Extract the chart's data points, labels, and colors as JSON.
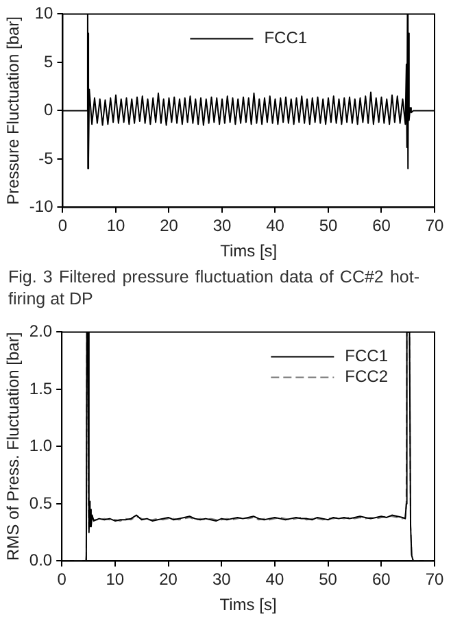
{
  "chart_data": [
    {
      "type": "line",
      "xlabel": "Tims [s]",
      "ylabel": "Pressure Fluctuation [bar]",
      "xlim": [
        0,
        70
      ],
      "xticks": [
        0,
        10,
        20,
        30,
        40,
        50,
        60,
        70
      ],
      "ylim": [
        -10,
        10
      ],
      "yticks": [
        -10,
        -5,
        0,
        5,
        10
      ],
      "legend": "top",
      "annotations": [
        "Fig. 3 Filtered pressure fluctuation data of CC#2 hot-firing at DP"
      ],
      "series": [
        {
          "name": "FCC1",
          "color": "#000000",
          "line_style": "solid",
          "x": [
            0,
            4.6,
            4.7,
            4.75,
            4.8,
            4.9,
            5.0,
            5.5,
            6,
            6.5,
            7,
            7.5,
            8,
            8.5,
            9,
            9.5,
            10,
            10.5,
            11,
            11.5,
            12,
            12.5,
            13,
            13.5,
            14,
            14.5,
            15,
            15.5,
            16,
            16.5,
            17,
            17.5,
            18,
            18.5,
            19,
            19.5,
            20,
            20.5,
            21,
            21.5,
            22,
            22.5,
            23,
            23.5,
            24,
            24.5,
            25,
            25.5,
            26,
            26.5,
            27,
            27.5,
            28,
            28.5,
            29,
            29.5,
            30,
            30.5,
            31,
            31.5,
            32,
            32.5,
            33,
            33.5,
            34,
            34.5,
            35,
            35.5,
            36,
            36.5,
            37,
            37.5,
            38,
            38.5,
            39,
            39.5,
            40,
            40.5,
            41,
            41.5,
            42,
            42.5,
            43,
            43.5,
            44,
            44.5,
            45,
            45.5,
            46,
            46.5,
            47,
            47.5,
            48,
            48.5,
            49,
            49.5,
            50,
            50.5,
            51,
            51.5,
            52,
            52.5,
            53,
            53.5,
            54,
            54.5,
            55,
            55.5,
            56,
            56.5,
            57,
            57.5,
            58,
            58.5,
            59,
            59.5,
            60,
            60.5,
            61,
            61.5,
            62,
            62.5,
            63,
            63.5,
            64,
            64.5,
            64.7,
            64.8,
            64.9,
            65.0,
            65.1,
            65.2,
            65.4,
            65.6,
            66,
            70
          ],
          "values": [
            0,
            0,
            10,
            -6,
            8,
            -5,
            2.2,
            -1.4,
            1.3,
            -1.3,
            1.2,
            -1.5,
            1.1,
            -1.4,
            1.3,
            -1.2,
            1.6,
            -1.3,
            1.2,
            -1.2,
            1.3,
            -1.4,
            1.2,
            -1.3,
            1.4,
            -1.1,
            1.5,
            -1.3,
            1.2,
            -1.4,
            1.3,
            -1.2,
            1.8,
            -1.3,
            1.2,
            -1.5,
            1.3,
            -1.2,
            1.4,
            -1.3,
            1.2,
            -1.4,
            1.3,
            -1.2,
            1.5,
            -1.3,
            1.2,
            -1.4,
            1.3,
            -1.5,
            1.2,
            -1.3,
            1.4,
            -1.2,
            1.3,
            -1.4,
            1.2,
            -1.3,
            1.5,
            -1.2,
            1.3,
            -1.4,
            1.2,
            -1.3,
            1.4,
            -1.2,
            1.3,
            -1.4,
            1.8,
            -1.3,
            1.2,
            -1.4,
            1.3,
            -1.2,
            1.5,
            -1.3,
            1.2,
            -1.4,
            1.3,
            -1.2,
            1.4,
            -1.3,
            1.2,
            -1.4,
            1.3,
            -1.2,
            1.5,
            -1.3,
            1.2,
            -1.4,
            1.3,
            -1.2,
            1.4,
            -1.3,
            1.2,
            -1.4,
            1.3,
            -1.2,
            1.5,
            -1.3,
            1.2,
            -1.4,
            1.3,
            -1.2,
            1.4,
            -1.3,
            1.2,
            -1.4,
            1.3,
            -1.2,
            1.5,
            -1.3,
            1.9,
            -1.4,
            1.3,
            -1.2,
            1.4,
            -1.3,
            1.2,
            -1.4,
            1.6,
            -1.2,
            1.5,
            -1.3,
            1.2,
            -1.4,
            4.8,
            -3.8,
            10,
            -6,
            8,
            -1,
            0.3,
            -0.2,
            0,
            0
          ]
        }
      ]
    },
    {
      "type": "line",
      "xlabel": "Tims [s]",
      "ylabel": "RMS of Press. Fluctuation [bar]",
      "xlim": [
        0,
        70
      ],
      "xticks": [
        0,
        10,
        20,
        30,
        40,
        50,
        60,
        70
      ],
      "ylim": [
        0,
        2
      ],
      "yticks": [
        {
          "value": 0,
          "label": "0.0"
        },
        {
          "value": 0.5,
          "label": "0.5"
        },
        {
          "value": 1,
          "label": "1.0"
        },
        {
          "value": 1.5,
          "label": "1.5"
        },
        {
          "value": 2,
          "label": "2.0"
        }
      ],
      "legend": "top right",
      "series": [
        {
          "name": "FCC1",
          "color": "#000000",
          "line_style": "solid",
          "x": [
            0,
            4.5,
            4.6,
            4.7,
            4.9,
            5.1,
            5.2,
            5.3,
            5.4,
            5.5,
            5.7,
            6,
            7,
            8,
            9,
            10,
            11,
            12,
            13,
            14,
            15,
            16,
            17,
            18,
            19,
            20,
            21,
            22,
            23,
            24,
            25,
            26,
            27,
            28,
            29,
            30,
            31,
            32,
            33,
            34,
            35,
            36,
            37,
            38,
            39,
            40,
            41,
            42,
            43,
            44,
            45,
            46,
            47,
            48,
            49,
            50,
            51,
            52,
            53,
            54,
            55,
            56,
            57,
            58,
            59,
            60,
            61,
            62,
            63,
            64,
            64.5,
            64.7,
            64.8,
            65.3,
            65.5,
            65.7,
            66,
            70
          ],
          "values": [
            0,
            0,
            0.05,
            2,
            2,
            0.25,
            0.52,
            0.3,
            0.45,
            0.3,
            0.4,
            0.35,
            0.37,
            0.36,
            0.37,
            0.35,
            0.36,
            0.36,
            0.37,
            0.4,
            0.36,
            0.37,
            0.35,
            0.36,
            0.37,
            0.38,
            0.36,
            0.37,
            0.38,
            0.39,
            0.37,
            0.36,
            0.37,
            0.36,
            0.35,
            0.37,
            0.36,
            0.37,
            0.38,
            0.37,
            0.38,
            0.39,
            0.37,
            0.36,
            0.37,
            0.38,
            0.37,
            0.36,
            0.37,
            0.38,
            0.37,
            0.37,
            0.36,
            0.38,
            0.37,
            0.36,
            0.38,
            0.37,
            0.38,
            0.37,
            0.38,
            0.39,
            0.38,
            0.37,
            0.38,
            0.39,
            0.38,
            0.4,
            0.39,
            0.38,
            0.37,
            0.5,
            2,
            2,
            0.3,
            0.05,
            0,
            0
          ]
        },
        {
          "name": "FCC2",
          "color": "#777777",
          "line_style": "dashed",
          "x": [
            0,
            4.5,
            4.6,
            4.7,
            4.9,
            5.0,
            5.1,
            5.2,
            5.3,
            5.4,
            5.5,
            5.7,
            6,
            7,
            8,
            9,
            10,
            11,
            12,
            13,
            14,
            15,
            16,
            17,
            18,
            19,
            20,
            21,
            22,
            23,
            24,
            25,
            26,
            27,
            28,
            29,
            30,
            31,
            32,
            33,
            34,
            35,
            36,
            37,
            38,
            39,
            40,
            41,
            42,
            43,
            44,
            45,
            46,
            47,
            48,
            49,
            50,
            51,
            52,
            53,
            54,
            55,
            56,
            57,
            58,
            59,
            60,
            61,
            62,
            63,
            64,
            64.5,
            64.7,
            64.8,
            65.3,
            65.5,
            65.7,
            66,
            70
          ],
          "values": [
            0,
            0,
            0.05,
            2,
            2,
            0.45,
            0.28,
            0.48,
            0.32,
            0.42,
            0.33,
            0.38,
            0.36,
            0.36,
            0.37,
            0.36,
            0.36,
            0.35,
            0.37,
            0.36,
            0.39,
            0.37,
            0.36,
            0.36,
            0.37,
            0.36,
            0.37,
            0.37,
            0.36,
            0.37,
            0.38,
            0.36,
            0.37,
            0.36,
            0.37,
            0.36,
            0.36,
            0.37,
            0.36,
            0.37,
            0.38,
            0.37,
            0.38,
            0.36,
            0.37,
            0.36,
            0.37,
            0.38,
            0.37,
            0.36,
            0.37,
            0.38,
            0.36,
            0.37,
            0.37,
            0.36,
            0.37,
            0.37,
            0.38,
            0.37,
            0.38,
            0.37,
            0.38,
            0.37,
            0.38,
            0.37,
            0.38,
            0.39,
            0.39,
            0.38,
            0.37,
            0.38,
            0.48,
            2,
            2,
            0.32,
            0.06,
            0,
            0
          ]
        }
      ]
    }
  ]
}
